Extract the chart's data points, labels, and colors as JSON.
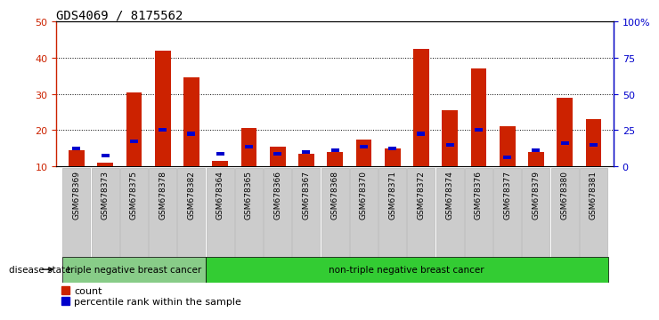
{
  "title": "GDS4069 / 8175562",
  "samples": [
    "GSM678369",
    "GSM678373",
    "GSM678375",
    "GSM678378",
    "GSM678382",
    "GSM678364",
    "GSM678365",
    "GSM678366",
    "GSM678367",
    "GSM678368",
    "GSM678370",
    "GSM678371",
    "GSM678372",
    "GSM678374",
    "GSM678376",
    "GSM678377",
    "GSM678379",
    "GSM678380",
    "GSM678381"
  ],
  "counts": [
    14.5,
    11.0,
    30.5,
    42.0,
    34.5,
    11.5,
    20.5,
    15.5,
    13.5,
    14.0,
    17.5,
    15.0,
    42.5,
    25.5,
    37.0,
    21.0,
    14.0,
    29.0,
    23.0
  ],
  "percentile_ranks": [
    15.0,
    13.0,
    17.0,
    20.0,
    19.0,
    13.5,
    15.5,
    13.5,
    14.0,
    14.5,
    15.5,
    15.0,
    19.0,
    16.0,
    20.0,
    12.5,
    14.5,
    16.5,
    16.0
  ],
  "bar_color": "#cc2200",
  "pct_color": "#0000cc",
  "groups": [
    {
      "label": "triple negative breast cancer",
      "start": 0,
      "end": 5,
      "color": "#88cc88"
    },
    {
      "label": "non-triple negative breast cancer",
      "start": 5,
      "end": 19,
      "color": "#33cc33"
    }
  ],
  "ylim_left": [
    10,
    50
  ],
  "ylim_right": [
    0,
    100
  ],
  "yticks_left": [
    10,
    20,
    30,
    40,
    50
  ],
  "yticks_right": [
    0,
    25,
    50,
    75,
    100
  ],
  "ytick_labels_left": [
    "10",
    "20",
    "30",
    "40",
    "50"
  ],
  "ytick_labels_right": [
    "0",
    "25",
    "50",
    "75",
    "100%"
  ],
  "left_axis_color": "#cc2200",
  "right_axis_color": "#0000cc",
  "background_color": "#ffffff",
  "plot_area_color": "#ffffff",
  "grid_color": "#000000",
  "bar_width": 0.55,
  "pct_bar_width": 0.28,
  "legend_count_label": "count",
  "legend_pct_label": "percentile rank within the sample",
  "disease_state_label": "disease state",
  "xlabel_fontsize": 6.5,
  "title_fontsize": 10,
  "tick_fontsize": 8,
  "group_label_fontsize": 7.5,
  "sample_box_color": "#cccccc",
  "sample_box_edge_color": "#aaaaaa"
}
